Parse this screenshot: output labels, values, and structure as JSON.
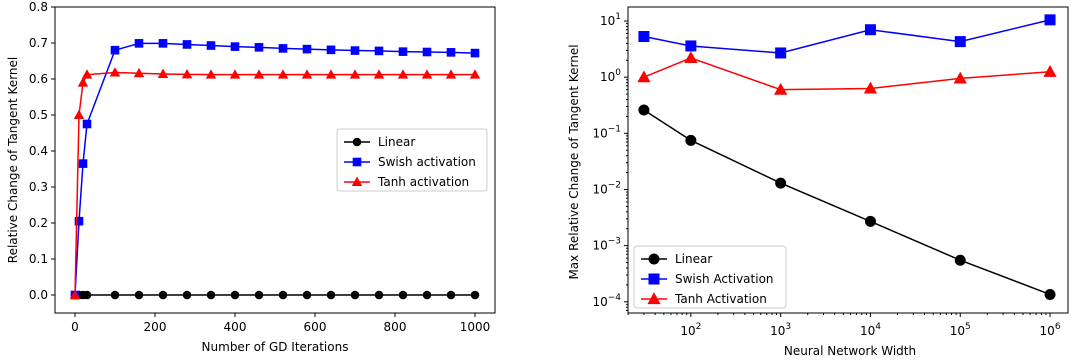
{
  "chart_data": [
    {
      "type": "line",
      "title": "",
      "xlabel": "Number of GD Iterations",
      "ylabel": "Relative Change of Tangent Kernel",
      "xlim": [
        -50,
        1050
      ],
      "ylim": [
        -0.05,
        0.8
      ],
      "xscale": "linear",
      "yscale": "linear",
      "xticks": [
        0,
        200,
        400,
        600,
        800,
        1000
      ],
      "xtick_labels": [
        "0",
        "200",
        "400",
        "600",
        "800",
        "1000"
      ],
      "yticks": [
        0.0,
        0.1,
        0.2,
        0.3,
        0.4,
        0.5,
        0.6,
        0.7,
        0.8
      ],
      "ytick_labels": [
        "0.0",
        "0.1",
        "0.2",
        "0.3",
        "0.4",
        "0.5",
        "0.6",
        "0.7",
        "0.8"
      ],
      "grid": false,
      "legend_position": "center-right",
      "series": [
        {
          "name": "Linear",
          "color": "#000000",
          "marker": "circle",
          "x": [
            0,
            10,
            20,
            30,
            100,
            160,
            220,
            280,
            340,
            400,
            460,
            520,
            580,
            640,
            700,
            760,
            820,
            880,
            940,
            1000
          ],
          "y": [
            0,
            0,
            0,
            0,
            0,
            0,
            0,
            0,
            0,
            0,
            0,
            0,
            0,
            0,
            0,
            0,
            0,
            0,
            0,
            0
          ]
        },
        {
          "name": "Swish activation",
          "color": "#0000ff",
          "marker": "square",
          "x": [
            0,
            10,
            20,
            30,
            100,
            160,
            220,
            280,
            340,
            400,
            460,
            520,
            580,
            640,
            700,
            760,
            820,
            880,
            940,
            1000
          ],
          "y": [
            0,
            0.205,
            0.365,
            0.475,
            0.68,
            0.699,
            0.699,
            0.696,
            0.693,
            0.69,
            0.688,
            0.685,
            0.683,
            0.681,
            0.679,
            0.678,
            0.676,
            0.675,
            0.674,
            0.672
          ]
        },
        {
          "name": "Tanh activation",
          "color": "#ff0000",
          "marker": "triangle",
          "x": [
            0,
            10,
            20,
            30,
            100,
            160,
            220,
            280,
            340,
            400,
            460,
            520,
            580,
            640,
            700,
            760,
            820,
            880,
            940,
            1000
          ],
          "y": [
            0,
            0.5,
            0.59,
            0.612,
            0.618,
            0.616,
            0.614,
            0.613,
            0.612,
            0.612,
            0.612,
            0.612,
            0.612,
            0.612,
            0.612,
            0.612,
            0.612,
            0.612,
            0.612,
            0.612
          ]
        }
      ]
    },
    {
      "type": "line",
      "title": "",
      "xlabel": "Neural Network Width",
      "ylabel": "Max Relative Change of Tangent Kernel",
      "xscale": "log",
      "yscale": "log",
      "xlim_log10": [
        1.3,
        6.2
      ],
      "ylim_log10": [
        -4.2,
        1.25
      ],
      "xticks": [
        100,
        1000,
        10000,
        100000,
        1000000
      ],
      "xtick_labels": [
        {
          "base": "10",
          "exp": "2"
        },
        {
          "base": "10",
          "exp": "3"
        },
        {
          "base": "10",
          "exp": "4"
        },
        {
          "base": "10",
          "exp": "5"
        },
        {
          "base": "10",
          "exp": "6"
        }
      ],
      "yticks": [
        0.0001,
        0.001,
        0.01,
        0.1,
        1,
        10
      ],
      "ytick_labels": [
        {
          "base": "10",
          "exp": "−4"
        },
        {
          "base": "10",
          "exp": "−3"
        },
        {
          "base": "10",
          "exp": "−2"
        },
        {
          "base": "10",
          "exp": "−1"
        },
        {
          "base": "10",
          "exp": "0"
        },
        {
          "base": "10",
          "exp": "1"
        }
      ],
      "grid": false,
      "legend_position": "lower-left",
      "series": [
        {
          "name": "Linear",
          "color": "#000000",
          "marker": "circle",
          "x": [
            30,
            100,
            1000,
            10000,
            100000,
            1000000
          ],
          "y": [
            0.26,
            0.075,
            0.013,
            0.0027,
            0.00055,
            0.000135
          ]
        },
        {
          "name": "Swish Activation",
          "color": "#0000ff",
          "marker": "square",
          "x": [
            30,
            100,
            1000,
            10000,
            100000,
            1000000
          ],
          "y": [
            5.3,
            3.6,
            2.7,
            7.0,
            4.3,
            10.5
          ]
        },
        {
          "name": "Tanh Activation",
          "color": "#ff0000",
          "marker": "triangle",
          "x": [
            30,
            100,
            1000,
            10000,
            100000,
            1000000
          ],
          "y": [
            1.0,
            2.2,
            0.6,
            0.63,
            0.95,
            1.25
          ]
        }
      ]
    }
  ]
}
